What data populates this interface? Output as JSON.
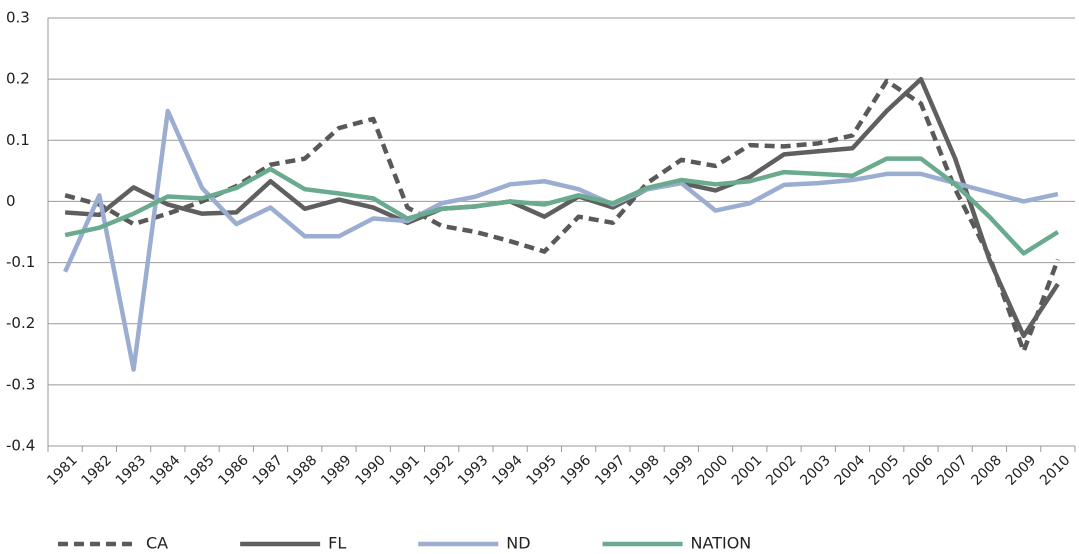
{
  "chart_data": {
    "type": "line",
    "categories": [
      "1981",
      "1982",
      "1983",
      "1984",
      "1985",
      "1986",
      "1987",
      "1988",
      "1989",
      "1990",
      "1991",
      "1992",
      "1993",
      "1994",
      "1995",
      "1996",
      "1997",
      "1998",
      "1999",
      "2000",
      "2001",
      "2002",
      "2003",
      "2004",
      "2005",
      "2006",
      "2007",
      "2008",
      "2009",
      "2010"
    ],
    "series": [
      {
        "name": "CA",
        "color": "#595959",
        "dashed": true,
        "values": [
          0.01,
          -0.005,
          -0.037,
          -0.02,
          0.0,
          0.025,
          0.06,
          0.07,
          0.12,
          0.135,
          -0.01,
          -0.04,
          -0.05,
          -0.065,
          -0.082,
          -0.025,
          -0.035,
          0.03,
          0.068,
          0.058,
          0.092,
          0.09,
          0.095,
          0.108,
          0.197,
          0.16,
          0.02,
          -0.09,
          -0.245,
          -0.095
        ]
      },
      {
        "name": "FL",
        "color": "#5f5f5f",
        "dashed": false,
        "values": [
          -0.018,
          -0.022,
          0.023,
          -0.005,
          -0.02,
          -0.018,
          0.033,
          -0.012,
          0.003,
          -0.01,
          -0.035,
          -0.012,
          -0.008,
          0.0,
          -0.025,
          0.008,
          -0.01,
          0.02,
          0.03,
          0.018,
          0.04,
          0.077,
          0.082,
          0.087,
          0.148,
          0.2,
          0.07,
          -0.095,
          -0.22,
          -0.135
        ]
      },
      {
        "name": "ND",
        "color": "#9badd0",
        "dashed": false,
        "values": [
          -0.115,
          0.01,
          -0.275,
          0.148,
          0.022,
          -0.037,
          -0.01,
          -0.057,
          -0.057,
          -0.028,
          -0.032,
          -0.003,
          0.008,
          0.028,
          0.033,
          0.02,
          -0.005,
          0.02,
          0.03,
          -0.015,
          -0.003,
          0.027,
          0.03,
          0.035,
          0.045,
          0.045,
          0.03,
          0.015,
          0.0,
          0.012
        ]
      },
      {
        "name": "NATION",
        "color": "#6aaa8f",
        "dashed": false,
        "values": [
          -0.055,
          -0.043,
          -0.02,
          0.008,
          0.005,
          0.022,
          0.053,
          0.02,
          0.013,
          0.005,
          -0.028,
          -0.012,
          -0.008,
          0.0,
          -0.005,
          0.01,
          -0.003,
          0.022,
          0.035,
          0.028,
          0.033,
          0.048,
          0.045,
          0.042,
          0.07,
          0.07,
          0.028,
          -0.025,
          -0.085,
          -0.05
        ]
      }
    ],
    "ylim": [
      -0.4,
      0.3
    ],
    "yticks": [
      -0.4,
      -0.3,
      -0.2,
      -0.1,
      0,
      0.1,
      0.2,
      0.3
    ],
    "grid": true,
    "legend": "bottom"
  }
}
